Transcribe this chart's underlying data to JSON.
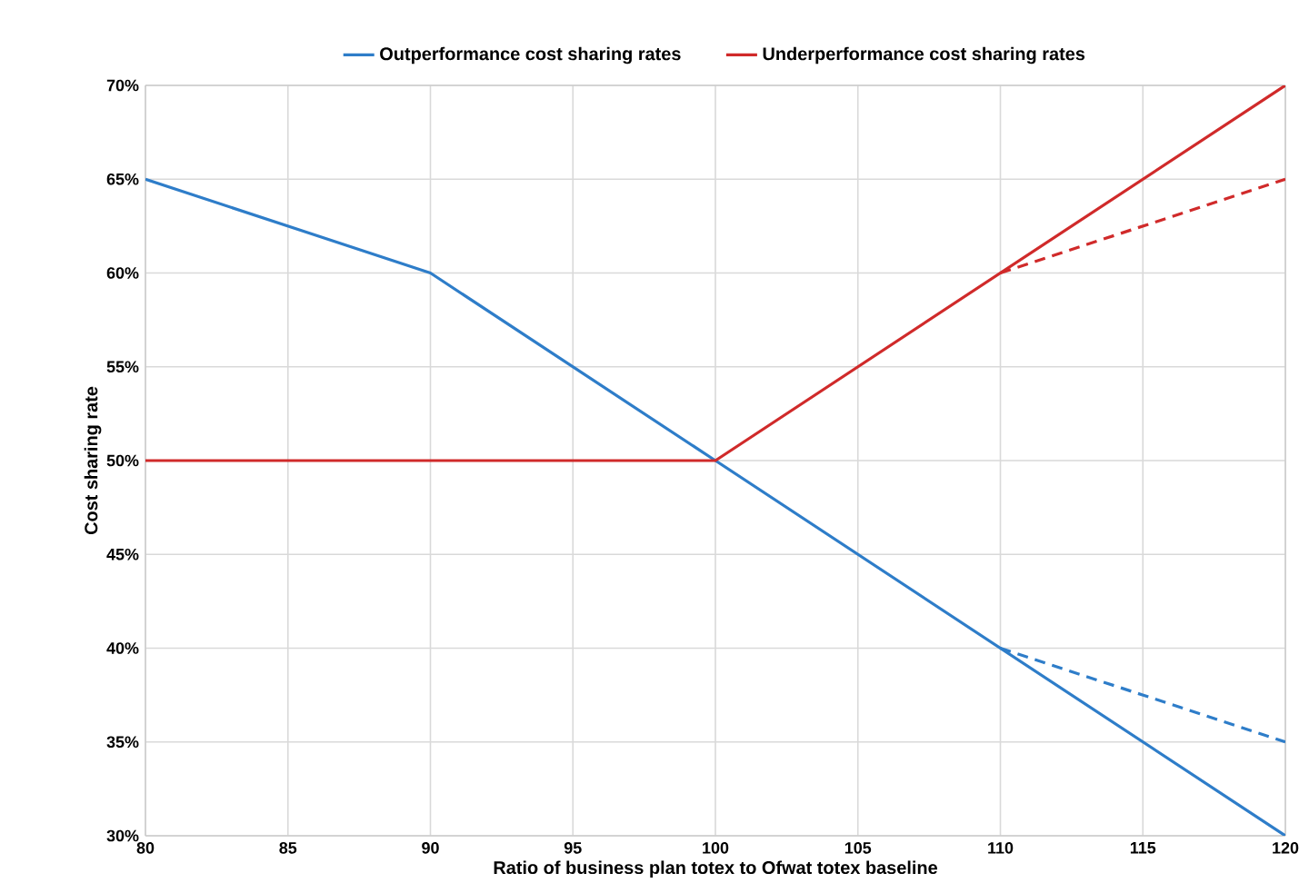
{
  "chart_data": {
    "type": "line",
    "xlabel": "Ratio of business plan totex to Ofwat totex baseline",
    "ylabel": "Cost sharing rate",
    "xlim": [
      80,
      120
    ],
    "xticks": [
      80,
      85,
      90,
      95,
      100,
      105,
      110,
      115,
      120
    ],
    "ylim": [
      30,
      70
    ],
    "yticks": [
      {
        "value": 30,
        "label": "30%"
      },
      {
        "value": 35,
        "label": "35%"
      },
      {
        "value": 40,
        "label": "40%"
      },
      {
        "value": 45,
        "label": "45%"
      },
      {
        "value": 50,
        "label": "50%"
      },
      {
        "value": 55,
        "label": "55%"
      },
      {
        "value": 60,
        "label": "60%"
      },
      {
        "value": 65,
        "label": "65%"
      },
      {
        "value": 70,
        "label": "70%"
      }
    ],
    "grid": true,
    "legend": "top",
    "series": [
      {
        "name": "Outperformance cost sharing rates",
        "color": "#2e7dc9",
        "x": [
          80,
          90,
          100,
          110,
          120
        ],
        "values": [
          65,
          60,
          50,
          40,
          30
        ]
      },
      {
        "name": "Underperformance cost sharing rates",
        "color": "#d02a2a",
        "x": [
          80,
          90,
          100,
          110,
          120
        ],
        "values": [
          50,
          50,
          50,
          60,
          70
        ]
      },
      {
        "color": "#2e7dc9",
        "line_style": "dashed",
        "x": [
          110,
          120
        ],
        "values": [
          40,
          35
        ]
      },
      {
        "color": "#d02a2a",
        "line_style": "dashed",
        "x": [
          110,
          120
        ],
        "values": [
          60,
          65
        ]
      }
    ]
  }
}
